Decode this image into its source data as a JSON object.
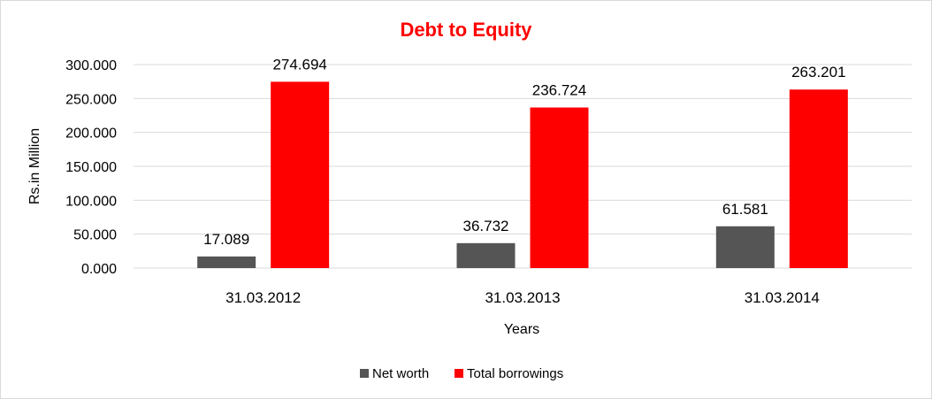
{
  "chart_data": {
    "type": "bar",
    "title": "Debt to Equity",
    "xlabel": "Years",
    "ylabel": "Rs.in Million",
    "categories": [
      "31.03.2012",
      "31.03.2013",
      "31.03.2014"
    ],
    "series": [
      {
        "name": "Net worth",
        "values": [
          17.089,
          36.732,
          61.581
        ],
        "color": "#555555",
        "labels": [
          "17.089",
          "36.732",
          "61.581"
        ]
      },
      {
        "name": "Total borrowings",
        "values": [
          274.694,
          236.724,
          263.201
        ],
        "color": "#ff0000",
        "labels": [
          "274.694",
          "236.724",
          "263.201"
        ]
      }
    ],
    "ylim": [
      0,
      300
    ],
    "yticks": [
      0,
      50,
      100,
      150,
      200,
      250,
      300
    ],
    "ytick_labels": [
      "0.000",
      "50.000",
      "100.000",
      "150.000",
      "200.000",
      "250.000",
      "300.000"
    ],
    "grid": true,
    "legend_position": "bottom",
    "title_color": "#ff0000",
    "grid_color": "#d9d9d9"
  }
}
